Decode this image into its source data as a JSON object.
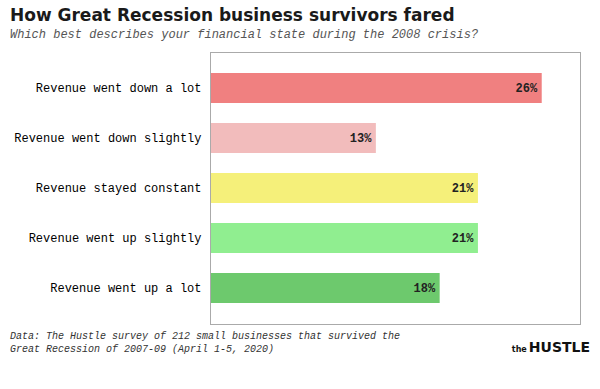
{
  "chart_data": {
    "type": "bar",
    "orientation": "horizontal",
    "title": "How Great Recession business survivors fared",
    "subtitle": "Which best describes your financial state during the 2008 crisis?",
    "annotations": [
      "Data: The Hustle survey of 212 small businesses that survived the\nGreat Recession of 2007-09 (April 1-5, 2020)",
      "the",
      "HUSTLE"
    ],
    "categories": [
      "Revenue went down a lot",
      "Revenue went down slightly",
      "Revenue stayed constant",
      "Revenue went up slightly",
      "Revenue went up a lot"
    ],
    "values": [
      26,
      13,
      21,
      21,
      18
    ],
    "value_labels": [
      "26%",
      "13%",
      "21%",
      "21%",
      "18%"
    ],
    "colors": [
      "#F08080",
      "#F2BCBC",
      "#F5F07A",
      "#90EE90",
      "#6DC96D"
    ],
    "xlim": [
      0,
      29
    ],
    "xticks": [],
    "data_labels": true,
    "tick_labels": "y",
    "grid": false
  }
}
